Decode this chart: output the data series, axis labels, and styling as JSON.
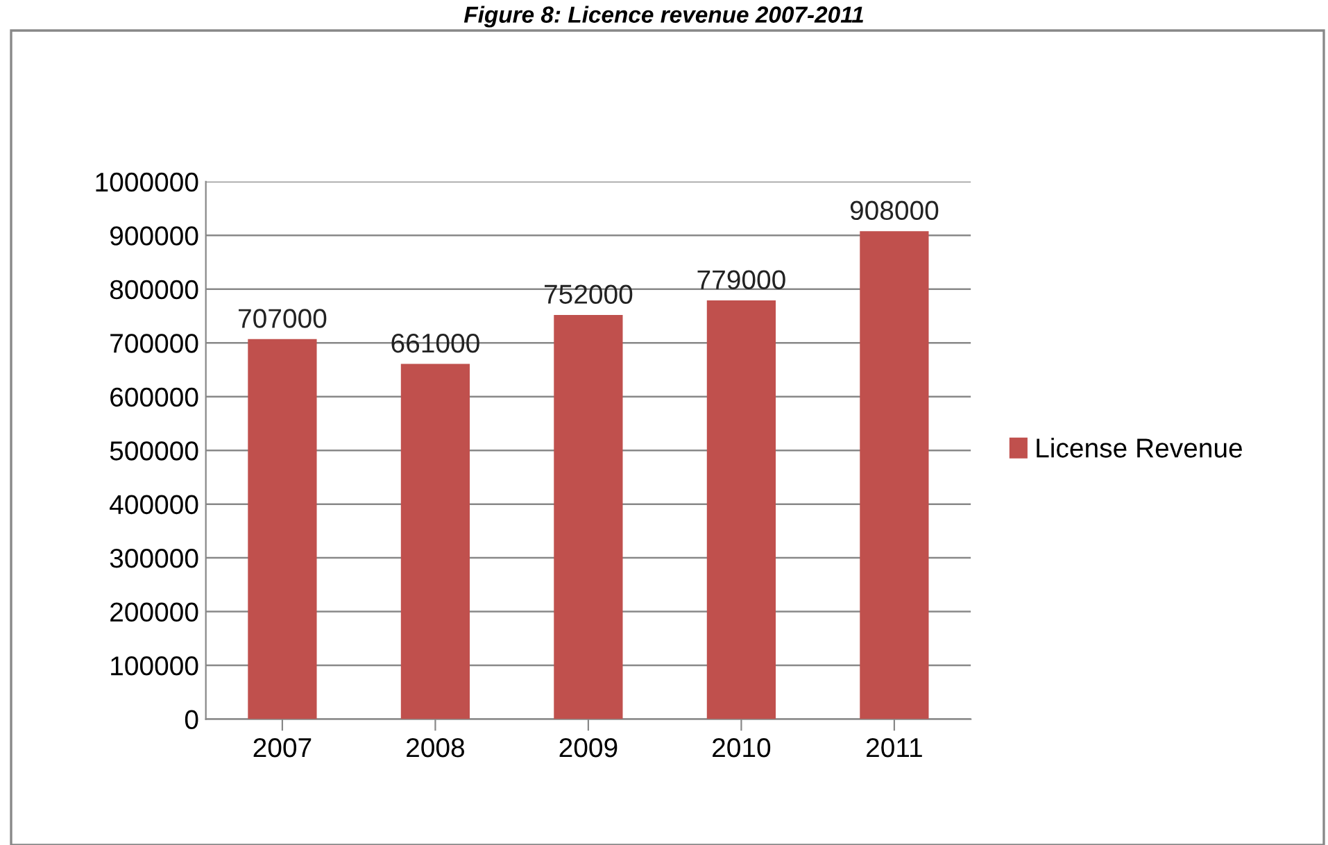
{
  "chart_data": {
    "type": "bar",
    "title": "Figure 8: Licence revenue 2007-2011",
    "categories": [
      "2007",
      "2008",
      "2009",
      "2010",
      "2011"
    ],
    "series": [
      {
        "name": "License Revenue",
        "color": "#c0504d",
        "values": [
          707000,
          661000,
          752000,
          779000,
          908000
        ]
      }
    ],
    "ylim": [
      0,
      1000000
    ],
    "yticks": [
      0,
      100000,
      200000,
      300000,
      400000,
      500000,
      600000,
      700000,
      800000,
      900000,
      1000000
    ],
    "grid": "y",
    "legend": "right",
    "data_labels": true
  }
}
